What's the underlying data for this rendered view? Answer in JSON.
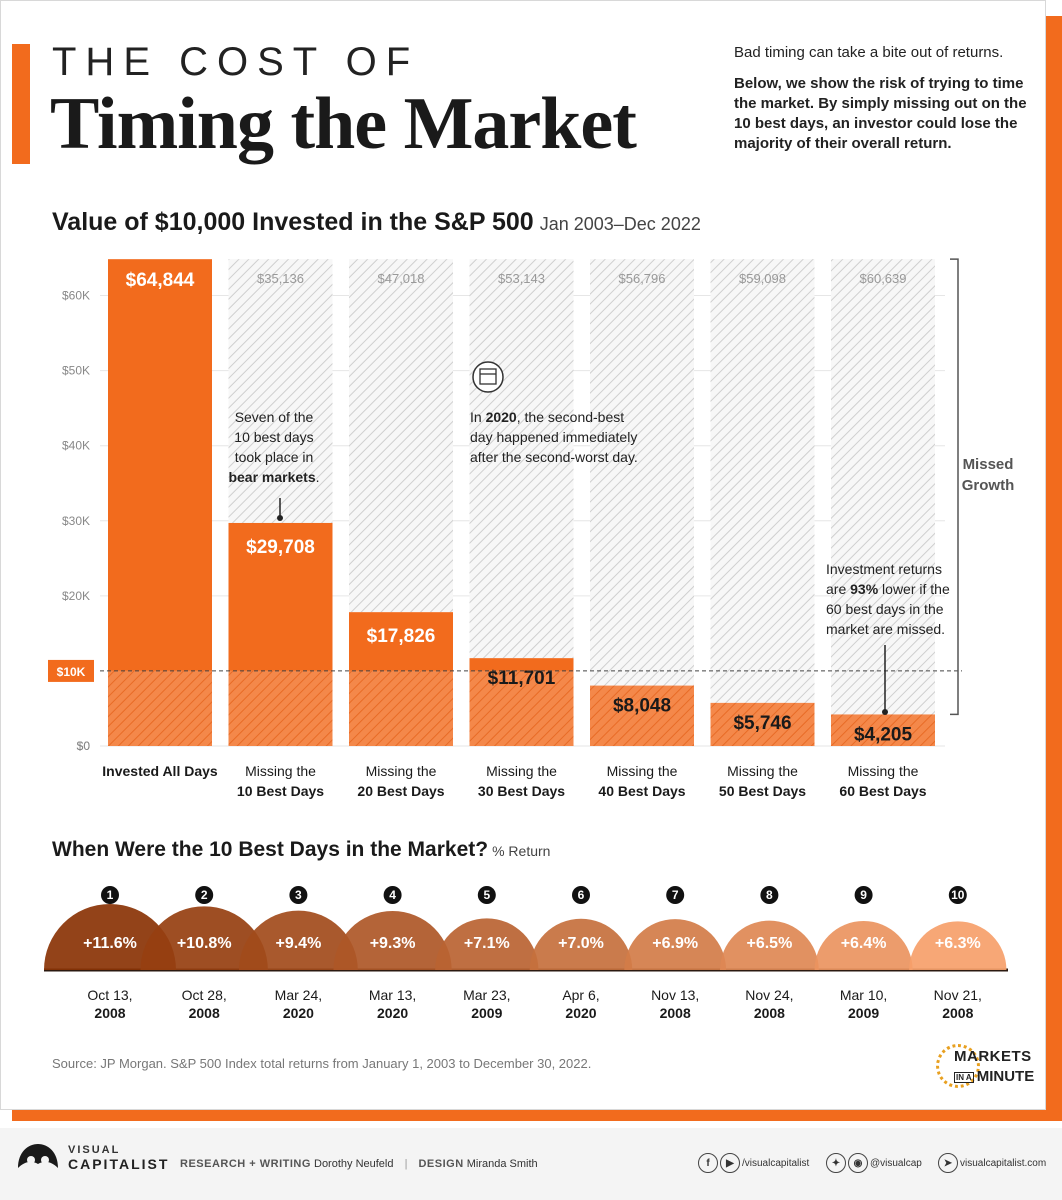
{
  "header": {
    "title_top": "THE COST OF",
    "title_main": "Timing the Market",
    "intro_1": "Bad timing can take a bite out of returns.",
    "intro_2": "Below, we show the risk of trying to time the market. By simply missing out on the 10 best days, an investor could lose the majority of their overall return."
  },
  "colors": {
    "accent": "#f26b1d",
    "bar_light": "#f4884a",
    "hatch": "#cfcfcf",
    "best_day_dark": "#8a3305",
    "best_day_light": "#f6a06a"
  },
  "chart_data": [
    {
      "type": "bar",
      "title": "Value of $10,000 Invested in the S&P 500",
      "subtitle": "Jan 2003–Dec 2022",
      "xlabel": "",
      "ylabel": "",
      "ylim": [
        0,
        65000
      ],
      "yticks": [
        0,
        10000,
        20000,
        30000,
        40000,
        50000,
        60000
      ],
      "ytick_labels": [
        "$0",
        "$10K",
        "$20K",
        "$30K",
        "$40K",
        "$50K",
        "$60K"
      ],
      "baseline_label": "$10K",
      "baseline_value": 10000,
      "categories": [
        [
          "Invested All Days"
        ],
        [
          "Missing the",
          "10 Best Days"
        ],
        [
          "Missing the",
          "20 Best Days"
        ],
        [
          "Missing the",
          "30 Best Days"
        ],
        [
          "Missing the",
          "40 Best Days"
        ],
        [
          "Missing the",
          "50 Best Days"
        ],
        [
          "Missing the",
          "60 Best Days"
        ]
      ],
      "values": [
        64844,
        29708,
        17826,
        11701,
        8048,
        5746,
        4205
      ],
      "value_labels": [
        "$64,844",
        "$29,708",
        "$17,826",
        "$11,701",
        "$8,048",
        "$5,746",
        "$4,205"
      ],
      "missed_growth_labels": [
        "",
        "$35,136",
        "$47,018",
        "$53,143",
        "$56,796",
        "$59,098",
        "$60,639"
      ],
      "bracket_label": [
        "Missed",
        "Growth"
      ],
      "grid": true,
      "annotations": [
        {
          "lines": [
            [
              "Seven of the"
            ],
            [
              "10 best days"
            ],
            [
              "took place in"
            ],
            [
              "bear markets",
              "."
            ]
          ],
          "bold_index": [
            3,
            0
          ]
        },
        {
          "lines": [
            [
              "In ",
              "2020",
              ", the second-best"
            ],
            [
              "day happened immediately"
            ],
            [
              "after the second-worst day."
            ]
          ]
        },
        {
          "lines": [
            [
              "Investment returns"
            ],
            [
              "are ",
              "93%",
              " lower if the"
            ],
            [
              "60 best days in the"
            ],
            [
              "market are missed."
            ]
          ]
        }
      ]
    },
    {
      "type": "bar",
      "title": "When Were the 10 Best Days in the Market?",
      "subtitle": "% Return",
      "ranks": [
        "1",
        "2",
        "3",
        "4",
        "5",
        "6",
        "7",
        "8",
        "9",
        "10"
      ],
      "values": [
        11.6,
        10.8,
        9.4,
        9.3,
        7.1,
        7.0,
        6.9,
        6.5,
        6.4,
        6.3
      ],
      "value_labels": [
        "+11.6%",
        "+10.8%",
        "+9.4%",
        "+9.3%",
        "+7.1%",
        "+7.0%",
        "+6.9%",
        "+6.5%",
        "+6.4%",
        "+6.3%"
      ],
      "dates": [
        "Oct 13,",
        "Oct 28,",
        "Mar 24,",
        "Mar 13,",
        "Mar 23,",
        "Apr 6,",
        "Nov 13,",
        "Nov 24,",
        "Mar 10,",
        "Nov 21,"
      ],
      "years": [
        "2008",
        "2008",
        "2020",
        "2020",
        "2009",
        "2020",
        "2008",
        "2008",
        "2009",
        "2008"
      ]
    }
  ],
  "source": "Source: JP Morgan. S&P 500 Index total returns from January 1, 2003 to December 30, 2022.",
  "badge": {
    "line1": "MARKETS",
    "small": "IN A",
    "line2": "MINUTE"
  },
  "footer": {
    "brand_1": "VISUAL",
    "brand_2": "CAPITALIST",
    "research_label": "RESEARCH + WRITING",
    "research_name": "Dorothy Neufeld",
    "design_label": "DESIGN",
    "design_name": "Miranda Smith",
    "separator": "|",
    "handle_1": "/visualcapitalist",
    "handle_2": "@visualcap",
    "website": "visualcapitalist.com",
    "icons": [
      "facebook-icon",
      "youtube-icon",
      "twitter-icon",
      "instagram-icon",
      "cursor-icon"
    ]
  }
}
